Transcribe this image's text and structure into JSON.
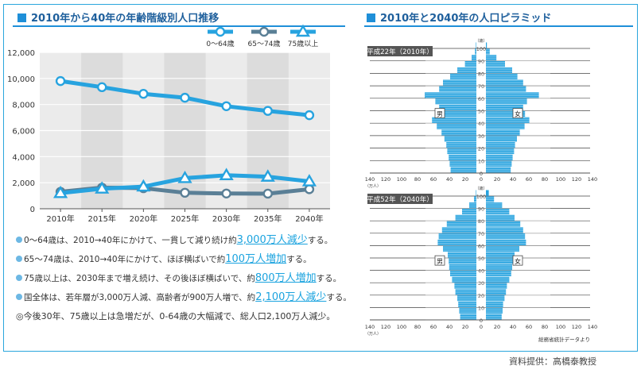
{
  "left_title": "2010年から40年の年齢階級別人口推移",
  "right_title": "2010年と2040年の人口ピラミッド",
  "chart_data": [
    {
      "type": "line",
      "title": "2010年から40年の年齢階級別人口推移",
      "categories": [
        "2010年",
        "2015年",
        "2020年",
        "2025年",
        "2030年",
        "2035年",
        "2040年"
      ],
      "series": [
        {
          "name": "0～64歳",
          "values": [
            9800,
            9330,
            8820,
            8520,
            7870,
            7510,
            7180
          ],
          "color": "#27a3df",
          "marker": "circle"
        },
        {
          "name": "65～74歳",
          "values": [
            1300,
            1620,
            1580,
            1230,
            1170,
            1160,
            1500
          ],
          "color": "#5a7f96",
          "marker": "circle"
        },
        {
          "name": "75歳以上",
          "values": [
            1200,
            1540,
            1700,
            2350,
            2570,
            2460,
            2100
          ],
          "color": "#27a3df",
          "marker": "triangle"
        }
      ],
      "ylim": [
        0,
        12000
      ],
      "yticks": [
        "0",
        "2,000",
        "4,000",
        "6,000",
        "8,000",
        "10,000",
        "12,000"
      ],
      "grid": true,
      "legend_placement": "top-right"
    },
    {
      "type": "bar",
      "title": "平成22年（2010年）",
      "orientation": "horizontal",
      "age_labels": [
        "100",
        "90",
        "80",
        "70",
        "60",
        "50",
        "40",
        "30",
        "20",
        "10",
        "0"
      ],
      "age_unit": "（歳）",
      "x_ticks": [
        "140",
        "120",
        "100",
        "80",
        "60",
        "40",
        "20",
        "0",
        "20",
        "40",
        "60",
        "80",
        "100",
        "120",
        "140"
      ],
      "x_unit": "（万人）",
      "male_label": "男",
      "female_label": "女",
      "age_groups": [
        "0-4",
        "5-9",
        "10-14",
        "15-19",
        "20-24",
        "25-29",
        "30-34",
        "35-39",
        "40-44",
        "45-49",
        "50-54",
        "55-59",
        "60-64",
        "65-69",
        "70-74",
        "75-79",
        "80-84",
        "85-89",
        "90-94",
        "95-99",
        "100+"
      ],
      "male_values": [
        54,
        56,
        58,
        61,
        63,
        67,
        73,
        83,
        93,
        83,
        78,
        86,
        108,
        78,
        70,
        55,
        40,
        24,
        10,
        3,
        1
      ],
      "female_values": [
        52,
        54,
        56,
        59,
        61,
        65,
        71,
        81,
        91,
        82,
        78,
        86,
        111,
        84,
        78,
        66,
        55,
        40,
        22,
        8,
        2
      ]
    },
    {
      "type": "bar",
      "title": "平成52年（2040年）",
      "orientation": "horizontal",
      "age_labels": [
        "100",
        "90",
        "80",
        "70",
        "60",
        "50",
        "40",
        "30",
        "20",
        "10",
        "0"
      ],
      "age_unit": "（歳）",
      "x_ticks": [
        "140",
        "120",
        "100",
        "80",
        "60",
        "40",
        "20",
        "0",
        "20",
        "40",
        "60",
        "80",
        "100",
        "120",
        "140"
      ],
      "x_unit": "（万人）",
      "male_label": "男",
      "female_label": "女",
      "age_groups": [
        "0-4",
        "5-9",
        "10-14",
        "15-19",
        "20-24",
        "25-29",
        "30-34",
        "35-39",
        "40-44",
        "45-49",
        "50-54",
        "55-59",
        "60-64",
        "65-69",
        "70-74",
        "75-79",
        "80-84",
        "85-89",
        "90-94",
        "95-99",
        "100+"
      ],
      "male_values": [
        34,
        36,
        38,
        40,
        44,
        46,
        51,
        55,
        57,
        58,
        60,
        70,
        81,
        79,
        72,
        62,
        44,
        30,
        15,
        5,
        1
      ],
      "female_values": [
        33,
        35,
        36,
        39,
        42,
        44,
        49,
        53,
        55,
        57,
        60,
        70,
        84,
        82,
        78,
        72,
        60,
        49,
        34,
        17,
        6
      ]
    }
  ],
  "notes": [
    {
      "pre": "0～64歳は、2010→40年にかけて、一貫して減り続け約",
      "hl": "3,000万人減少",
      "post": "する。"
    },
    {
      "pre": "65～74歳は、2010→40年にかけて、ほぼ横ばいで約",
      "hl": "100万人増加",
      "post": "する。"
    },
    {
      "pre": "75歳以上は、2030年まで増え続け、その後ほぼ横ばいで、約",
      "hl": "800万人増加",
      "post": "する。"
    },
    {
      "pre": "国全体は、若年層が3,000万人減、高齢者が900万人増で、約",
      "hl": "2,100万人減少",
      "post": "する。"
    }
  ],
  "conclusion": "◎今後30年、75歳以上は急増だが、0-64歳の大幅減で、総人口2,100万人減少。",
  "pyramid_source": "総務省統計データより",
  "credit": "資料提供：高橋泰教授",
  "colors": {
    "accent": "#27a3df",
    "dark_series": "#5a7f96",
    "plot_bg": "#ebebeb",
    "title_text": "#1e5f9c"
  }
}
